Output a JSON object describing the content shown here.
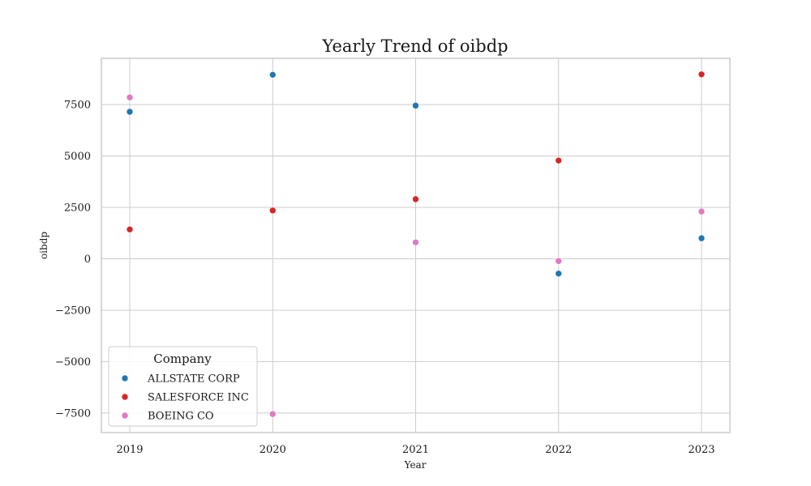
{
  "chart_data": {
    "type": "scatter",
    "title": "Yearly Trend of oibdp",
    "xlabel": "Year",
    "ylabel": "oibdp",
    "x": [
      2019,
      2020,
      2021,
      2022,
      2023
    ],
    "x_ticks": [
      "2019",
      "2020",
      "2021",
      "2022",
      "2023"
    ],
    "ylim": [
      -8450,
      9750
    ],
    "y_ticks": [
      -7500,
      -5000,
      -2500,
      0,
      2500,
      5000,
      7500
    ],
    "y_tick_labels": [
      "−7500",
      "−5000",
      "−2500",
      "0",
      "2500",
      "5000",
      "7500"
    ],
    "grid": true,
    "legend": {
      "title": "Company",
      "placement": "lower-left"
    },
    "series": [
      {
        "name": "ALLSTATE CORP",
        "color": "#1f77b4",
        "values": [
          7150,
          8950,
          7450,
          -720,
          1000
        ]
      },
      {
        "name": "SALESFORCE INC",
        "color": "#d62728",
        "values": [
          1430,
          2350,
          2900,
          4780,
          8970
        ]
      },
      {
        "name": "BOEING CO",
        "color": "#e377c2",
        "values": [
          7850,
          -7550,
          800,
          -110,
          2300
        ]
      }
    ]
  }
}
